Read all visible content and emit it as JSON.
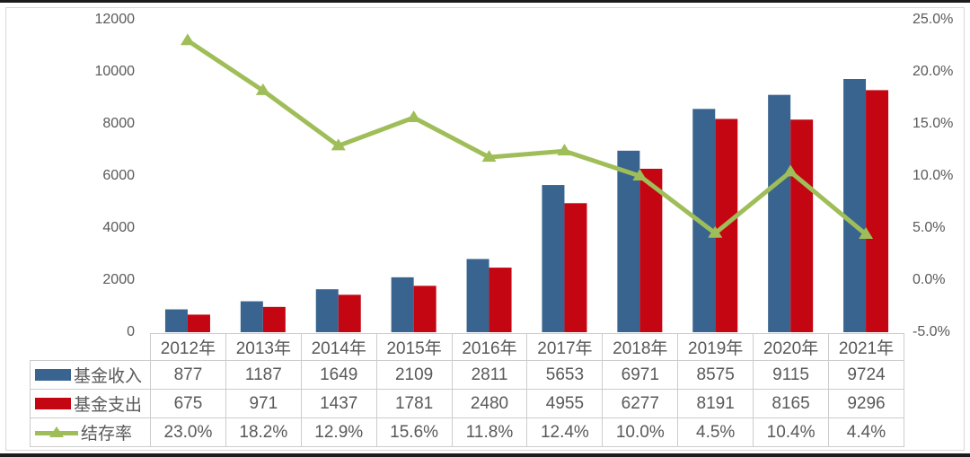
{
  "chart": {
    "left_axis_ticks": [
      "12000",
      "10000",
      "8000",
      "6000",
      "4000",
      "2000",
      "0"
    ],
    "right_axis_ticks": [
      "25.0%",
      "20.0%",
      "15.0%",
      "10.0%",
      "5.0%",
      "0.0%",
      "-5.0%"
    ],
    "colors": {
      "income": "#38648f",
      "expense": "#c40612",
      "rate": "#9fbe59",
      "text": "#595959",
      "table_border": "#cccccc",
      "frame_border": "#d8d8d8"
    }
  },
  "chart_data": {
    "type": "bar+line combo",
    "categories": [
      "2012年",
      "2013年",
      "2014年",
      "2015年",
      "2016年",
      "2017年",
      "2018年",
      "2019年",
      "2020年",
      "2021年"
    ],
    "series": [
      {
        "name": "基金收入",
        "type": "bar",
        "axis": "left",
        "color": "#38648f",
        "values": [
          877,
          1187,
          1649,
          2109,
          2811,
          5653,
          6971,
          8575,
          9115,
          9724
        ],
        "display": [
          "877",
          "1187",
          "1649",
          "2109",
          "2811",
          "5653",
          "6971",
          "8575",
          "9115",
          "9724"
        ]
      },
      {
        "name": "基金支出",
        "type": "bar",
        "axis": "left",
        "color": "#c40612",
        "values": [
          675,
          971,
          1437,
          1781,
          2480,
          4955,
          6277,
          8191,
          8165,
          9296
        ],
        "display": [
          "675",
          "971",
          "1437",
          "1781",
          "2480",
          "4955",
          "6277",
          "8191",
          "8165",
          "9296"
        ]
      },
      {
        "name": "结存率",
        "type": "line",
        "axis": "right",
        "color": "#9fbe59",
        "marker": "triangle-up",
        "values": [
          23.0,
          18.2,
          12.9,
          15.6,
          11.8,
          12.4,
          10.0,
          4.5,
          10.4,
          4.4
        ],
        "display": [
          "23.0%",
          "18.2%",
          "12.9%",
          "15.6%",
          "11.8%",
          "12.4%",
          "10.0%",
          "4.5%",
          "10.4%",
          "4.4%"
        ]
      }
    ],
    "left_axis": {
      "min": 0,
      "max": 12000,
      "tick_step": 2000
    },
    "right_axis": {
      "min": -5,
      "max": 25,
      "tick_step": 5
    },
    "grid": false,
    "plot_background": "#ffffff",
    "legend_position": "data-table-left"
  }
}
